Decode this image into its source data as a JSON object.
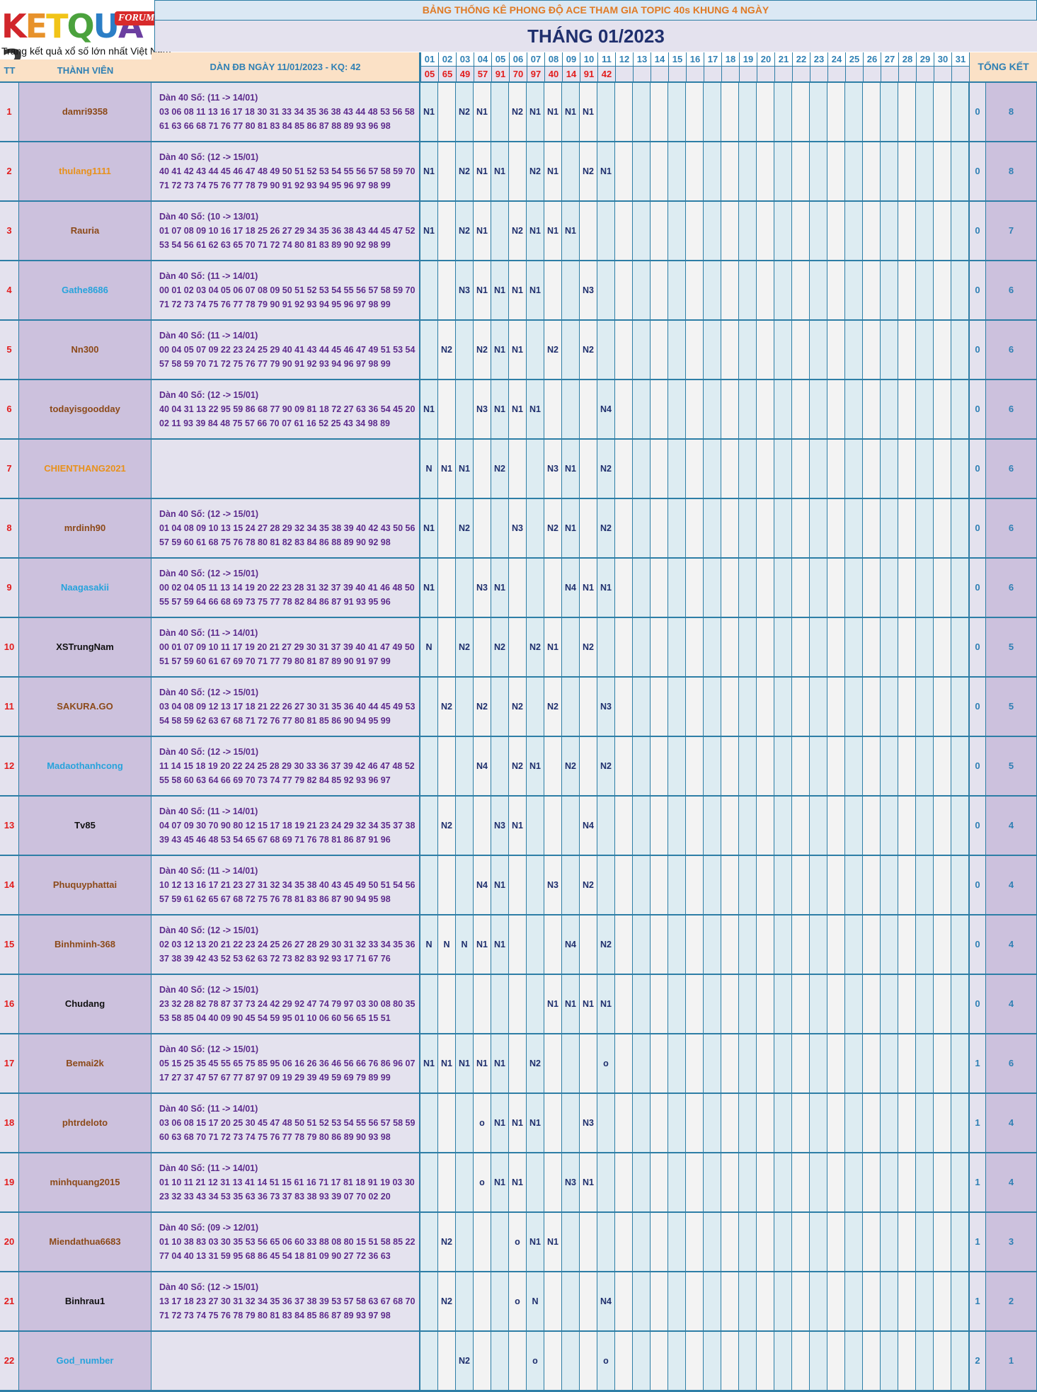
{
  "logo": {
    "brand": "KETQUA2",
    "badge": "FORUM",
    "tagline": "Trang kết quả xổ số lớn nhất Việt Nam"
  },
  "header": {
    "title": "BẢNG THỐNG KÊ PHONG ĐỘ ACE THAM GIA TOPIC 40s KHUNG 4 NGÀY",
    "month": "THÁNG 01/2023",
    "col_tt": "TT",
    "col_member": "THÀNH VIÊN",
    "col_dan": "DÀN ĐB NGÀY 11/01/2023 - KQ: 42",
    "col_total": "TỔNG KẾT"
  },
  "days": [
    "01",
    "02",
    "03",
    "04",
    "05",
    "06",
    "07",
    "08",
    "09",
    "10",
    "11",
    "12",
    "13",
    "14",
    "15",
    "16",
    "17",
    "18",
    "19",
    "20",
    "21",
    "22",
    "23",
    "24",
    "25",
    "26",
    "27",
    "28",
    "29",
    "30",
    "31"
  ],
  "results": [
    "05",
    "65",
    "49",
    "57",
    "91",
    "70",
    "97",
    "40",
    "14",
    "91",
    "42"
  ],
  "colors": {
    "border": "#2d7ea6",
    "red": "#e21c1c",
    "purple_text": "#5d2a8c",
    "navy": "#1f2f6d"
  },
  "rows": [
    {
      "tt": "1",
      "name": "damri9358",
      "color": "brown",
      "dan": [
        "Dàn 40 Số: (11 -> 14/01)",
        "03 06 08 11 13 16 17 18 30 31 33 34 35 36 38 43 44 48 53 56 58",
        "61 63 66 68 71 76 77 80 81 83 84 85 86 87 88 89 93 96 98"
      ],
      "marks": [
        "N1",
        "",
        "N2",
        "N1",
        "",
        "N2",
        "N1",
        "N1",
        "N1",
        "N1",
        ""
      ],
      "s1": "0",
      "s2": "8"
    },
    {
      "tt": "2",
      "name": "thulang1111",
      "color": "orange",
      "dan": [
        "Dàn 40 Số: (12 -> 15/01)",
        "40 41 42 43 44 45 46 47 48 49 50 51 52 53 54 55 56 57 58 59 70",
        "71 72 73 74 75 76 77 78 79 90 91 92 93 94 95 96 97 98 99"
      ],
      "marks": [
        "N1",
        "",
        "N2",
        "N1",
        "N1",
        "",
        "N2",
        "N1",
        "",
        "N2",
        "N1"
      ],
      "s1": "0",
      "s2": "8"
    },
    {
      "tt": "3",
      "name": "Rauria",
      "color": "brown",
      "dan": [
        "Dàn 40 Số: (10 -> 13/01)",
        "01 07 08 09 10 16 17 18 25 26 27 29 34 35 36 38 43 44 45 47 52",
        "53 54 56 61 62 63 65 70 71 72 74 80 81 83 89 90 92 98 99"
      ],
      "marks": [
        "N1",
        "",
        "N2",
        "N1",
        "",
        "N2",
        "N1",
        "N1",
        "N1",
        "",
        ""
      ],
      "s1": "0",
      "s2": "7"
    },
    {
      "tt": "4",
      "name": "Gathe8686",
      "color": "blue",
      "dan": [
        "Dàn 40 Số: (11 -> 14/01)",
        "00 01 02 03 04 05 06 07 08 09 50 51 52 53 54 55 56 57 58 59 70",
        "71 72 73 74 75 76 77 78 79 90 91 92 93 94 95 96 97 98 99"
      ],
      "marks": [
        "",
        "",
        "N3",
        "N1",
        "N1",
        "N1",
        "N1",
        "",
        "",
        "N3",
        ""
      ],
      "s1": "0",
      "s2": "6"
    },
    {
      "tt": "5",
      "name": "Nn300",
      "color": "brown",
      "dan": [
        "Dàn 40 Số: (11 -> 14/01)",
        "00 04 05 07 09 22 23 24 25 29 40 41 43 44 45 46 47 49 51 53 54",
        "57 58 59 70 71 72 75 76 77 79 90 91 92 93 94 96 97 98 99"
      ],
      "marks": [
        "",
        "N2",
        "",
        "N2",
        "N1",
        "N1",
        "",
        "N2",
        "",
        "N2",
        ""
      ],
      "s1": "0",
      "s2": "6"
    },
    {
      "tt": "6",
      "name": "todayisgoodday",
      "color": "brown",
      "dan": [
        "Dàn 40 Số: (12 -> 15/01)",
        "40 04 31 13 22 95 59 86 68 77 90 09 81 18 72 27 63 36 54 45 20",
        "02 11 93 39 84 48 75 57 66 70 07 61 16 52 25 43 34 98 89"
      ],
      "marks": [
        "N1",
        "",
        "",
        "N3",
        "N1",
        "N1",
        "N1",
        "",
        "",
        "",
        "N4"
      ],
      "s1": "0",
      "s2": "6"
    },
    {
      "tt": "7",
      "name": "CHIENTHANG2021",
      "color": "orange",
      "dan": [
        "",
        "",
        ""
      ],
      "marks": [
        "N",
        "N1",
        "N1",
        "",
        "N2",
        "",
        "",
        "N3",
        "N1",
        "",
        "N2"
      ],
      "s1": "0",
      "s2": "6"
    },
    {
      "tt": "8",
      "name": "mrdinh90",
      "color": "brown",
      "dan": [
        "Dàn 40 Số: (12 -> 15/01)",
        "01 04 08 09 10 13 15 24 27 28 29 32 34 35 38 39 40 42 43 50 56",
        "57 59 60 61 68 75 76 78 80 81 82 83 84 86 88 89 90 92 98"
      ],
      "marks": [
        "N1",
        "",
        "N2",
        "",
        "",
        "N3",
        "",
        "N2",
        "N1",
        "",
        "N2"
      ],
      "s1": "0",
      "s2": "6"
    },
    {
      "tt": "9",
      "name": "Naagasakii",
      "color": "blue",
      "dan": [
        "Dàn 40 Số: (12 -> 15/01)",
        "00 02 04 05 11 13 14 19 20 22 23 28 31 32 37 39 40 41 46 48 50",
        "55 57 59 64 66 68 69 73 75 77 78 82 84 86 87 91 93 95 96"
      ],
      "marks": [
        "N1",
        "",
        "",
        "N3",
        "N1",
        "",
        "",
        "",
        "N4",
        "N1",
        "N1"
      ],
      "s1": "0",
      "s2": "6"
    },
    {
      "tt": "10",
      "name": "XSTrungNam",
      "color": "black",
      "dan": [
        "Dàn 40 Số: (11 -> 14/01)",
        "00 01 07 09 10 11 17 19 20 21 27 29 30 31 37 39 40 41 47 49 50",
        "51 57 59 60 61 67 69 70 71 77 79 80 81 87 89 90 91 97 99"
      ],
      "marks": [
        "N",
        "",
        "N2",
        "",
        "N2",
        "",
        "N2",
        "N1",
        "",
        "N2",
        ""
      ],
      "s1": "0",
      "s2": "5"
    },
    {
      "tt": "11",
      "name": "SAKURA.GO",
      "color": "brown",
      "dan": [
        "Dàn 40 Số: (12 -> 15/01)",
        "03 04 08 09 12 13 17 18 21 22 26 27 30 31 35 36 40 44 45 49 53",
        "54 58 59 62 63 67 68 71 72 76 77 80 81 85 86 90 94 95 99"
      ],
      "marks": [
        "",
        "N2",
        "",
        "N2",
        "",
        "N2",
        "",
        "N2",
        "",
        "",
        "N3"
      ],
      "s1": "0",
      "s2": "5"
    },
    {
      "tt": "12",
      "name": "Madaothanhcong",
      "color": "blue",
      "dan": [
        "Dàn 40 Số: (12 -> 15/01)",
        "11 14 15 18 19 20 22 24 25 28 29 30 33 36 37 39 42 46 47 48 52",
        "55 58 60 63 64 66 69 70 73 74 77 79 82 84 85 92 93 96 97"
      ],
      "marks": [
        "",
        "",
        "",
        "N4",
        "",
        "N2",
        "N1",
        "",
        "N2",
        "",
        "N2"
      ],
      "s1": "0",
      "s2": "5"
    },
    {
      "tt": "13",
      "name": "Tv85",
      "color": "black",
      "dan": [
        "Dàn 40 Số: (11 -> 14/01)",
        "04 07 09 30 70 90 80 12 15 17 18 19 21 23 24 29 32 34 35 37 38",
        "39 43 45 46 48 53 54 65 67 68 69 71 76 78 81 86 87 91 96"
      ],
      "marks": [
        "",
        "N2",
        "",
        "",
        "N3",
        "N1",
        "",
        "",
        "",
        "N4",
        ""
      ],
      "s1": "0",
      "s2": "4"
    },
    {
      "tt": "14",
      "name": "Phuquyphattai",
      "color": "brown",
      "dan": [
        "Dàn 40 Số: (11 -> 14/01)",
        "10 12 13 16 17 21 23 27 31 32 34 35 38 40 43 45 49 50 51 54 56",
        "57 59 61 62 65 67 68 72 75 76 78 81 83 86 87 90 94 95 98"
      ],
      "marks": [
        "",
        "",
        "",
        "N4",
        "N1",
        "",
        "",
        "N3",
        "",
        "N2",
        ""
      ],
      "s1": "0",
      "s2": "4"
    },
    {
      "tt": "15",
      "name": "Binhminh-368",
      "color": "brown",
      "dan": [
        "Dàn 40 Số: (12 -> 15/01)",
        "02 03 12 13 20 21 22 23 24 25 26 27 28 29 30 31 32 33 34 35 36",
        "37 38 39 42 43 52 53 62 63 72 73 82 83 92 93 17 71 67 76"
      ],
      "marks": [
        "N",
        "N",
        "N",
        "N1",
        "N1",
        "",
        "",
        "",
        "N4",
        "",
        "N2"
      ],
      "s1": "0",
      "s2": "4"
    },
    {
      "tt": "16",
      "name": "Chudang",
      "color": "black",
      "dan": [
        "Dàn 40 Số: (12 -> 15/01)",
        "23 32 28 82 78 87 37 73 24 42 29 92 47 74 79 97 03 30 08 80 35",
        "53 58 85 04 40 09 90 45 54 59 95 01 10 06 60 56 65 15 51"
      ],
      "marks": [
        "",
        "",
        "",
        "",
        "",
        "",
        "",
        "N1",
        "N1",
        "N1",
        "N1"
      ],
      "s1": "0",
      "s2": "4"
    },
    {
      "tt": "17",
      "name": "Bemai2k",
      "color": "brown",
      "dan": [
        "Dàn 40 Số: (12 -> 15/01)",
        "05 15 25 35 45 55 65 75 85 95 06 16 26 36 46 56 66 76 86 96 07",
        "17 27 37 47 57 67 77 87 97 09 19 29 39 49 59 69 79 89 99"
      ],
      "marks": [
        "N1",
        "N1",
        "N1",
        "N1",
        "N1",
        "",
        "N2",
        "",
        "",
        "",
        "o"
      ],
      "s1": "1",
      "s2": "6"
    },
    {
      "tt": "18",
      "name": "phtrdeloto",
      "color": "brown",
      "dan": [
        "Dàn 40 Số: (11 -> 14/01)",
        "03 06 08 15 17 20 25 30 45 47 48 50 51 52 53 54 55 56 57 58 59",
        "60 63 68 70 71 72 73 74 75 76 77 78 79 80 86 89 90 93 98"
      ],
      "marks": [
        "",
        "",
        "",
        "o",
        "N1",
        "N1",
        "N1",
        "",
        "",
        "N3",
        ""
      ],
      "s1": "1",
      "s2": "4"
    },
    {
      "tt": "19",
      "name": "minhquang2015",
      "color": "brown",
      "dan": [
        "Dàn 40 Số: (11 -> 14/01)",
        "01 10 11 21 12 31 13 41 14 51 15 61 16 71 17 81 18 91 19 03 30",
        "23 32 33 43 34 53 35 63 36 73 37 83 38 93 39 07 70 02 20"
      ],
      "marks": [
        "",
        "",
        "",
        "o",
        "N1",
        "N1",
        "",
        "",
        "N3",
        "N1",
        ""
      ],
      "s1": "1",
      "s2": "4"
    },
    {
      "tt": "20",
      "name": "Miendathua6683",
      "color": "brown",
      "dan": [
        "Dàn 40 Số: (09 -> 12/01)",
        "01 10 38 83 03 30 35 53 56 65 06 60 33 88 08 80 15 51 58 85 22",
        "77 04 40 13 31 59 95 68 86 45 54 18 81 09 90 27 72 36 63"
      ],
      "marks": [
        "",
        "N2",
        "",
        "",
        "",
        "o",
        "N1",
        "N1",
        "",
        "",
        ""
      ],
      "s1": "1",
      "s2": "3"
    },
    {
      "tt": "21",
      "name": "Binhrau1",
      "color": "black",
      "dan": [
        "Dàn 40 Số: (12 -> 15/01)",
        "13 17 18 23 27 30 31 32 34 35 36 37 38 39 53 57 58 63 67 68 70",
        "71 72 73 74 75 76 78 79 80 81 83 84 85 86 87 89 93 97 98"
      ],
      "marks": [
        "",
        "N2",
        "",
        "",
        "",
        "o",
        "N",
        "",
        "",
        "",
        "N4"
      ],
      "s1": "1",
      "s2": "2"
    },
    {
      "tt": "22",
      "name": "God_number",
      "color": "blue",
      "dan": [
        "",
        "",
        ""
      ],
      "marks": [
        "",
        "",
        "N2",
        "",
        "",
        "",
        "o",
        "",
        "",
        "",
        "o"
      ],
      "s1": "2",
      "s2": "1"
    }
  ]
}
